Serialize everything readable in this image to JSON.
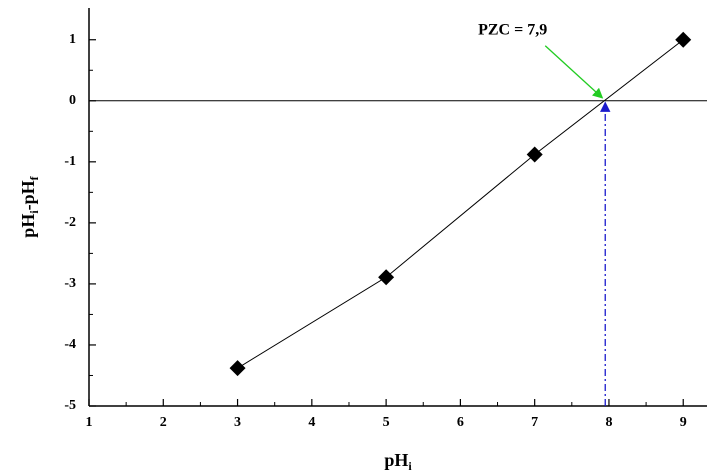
{
  "chart_data": {
    "type": "line",
    "x_label": [
      "pH",
      "i"
    ],
    "y_label": [
      "pH",
      "i",
      "-pH",
      "f"
    ],
    "x": [
      3,
      5,
      7,
      9
    ],
    "series": [
      {
        "color": "#000000",
        "values": [
          -4.38,
          -2.89,
          -0.88,
          1.0
        ]
      }
    ],
    "xlim": [
      1,
      9.32
    ],
    "xticks": [
      1,
      2,
      3,
      4,
      5,
      6,
      7,
      8,
      9
    ],
    "ylim": [
      -5,
      1.52
    ],
    "yticks": [
      -5,
      -4,
      -3,
      -2,
      -1,
      0,
      1
    ],
    "annotation": {
      "text": "PZC = 7,9",
      "x": 7.95,
      "y": 0
    }
  }
}
